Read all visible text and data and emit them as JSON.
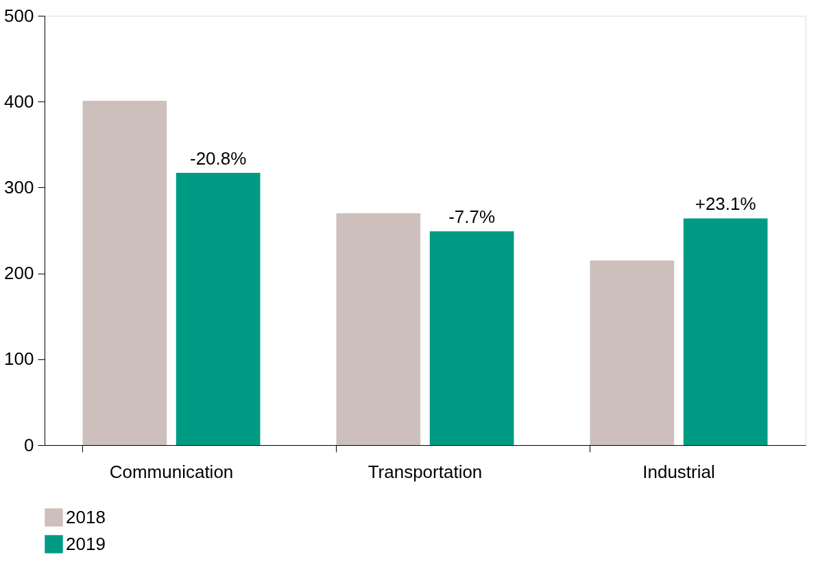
{
  "chart_data": {
    "type": "bar",
    "categories": [
      "Communication",
      "Transportation",
      "Industrial"
    ],
    "series": [
      {
        "name": "2018",
        "color": "#cdbfbb",
        "values": [
          401,
          270,
          215
        ]
      },
      {
        "name": "2019",
        "color": "#009b84",
        "values": [
          317,
          249,
          264
        ]
      }
    ],
    "annotations": [
      "-20.8%",
      "-7.7%",
      "+23.1%"
    ],
    "ylim": [
      0,
      500
    ],
    "yticks": [
      0,
      100,
      200,
      300,
      400,
      500
    ],
    "grid": false,
    "legend": "bottom left"
  }
}
